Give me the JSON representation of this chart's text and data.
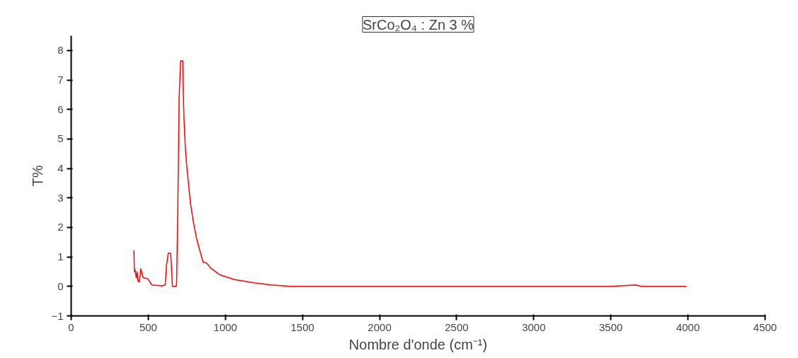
{
  "chart_data": {
    "type": "line",
    "title": "SrCo₂O₄ : Zn 3 %",
    "xlabel": "Nombre d'onde (cm⁻¹)",
    "ylabel": "T%",
    "xlim": [
      0,
      4500
    ],
    "xticks": [
      0,
      500,
      1000,
      1500,
      2000,
      2500,
      3000,
      3500,
      4000,
      4500
    ],
    "ylim": [
      -1,
      8.5
    ],
    "yticks": [
      -1,
      0,
      1,
      2,
      3,
      4,
      5,
      6,
      7,
      8
    ],
    "grid": false,
    "marker": "none",
    "line_style": "solid",
    "series": [
      {
        "color": "#ff0000",
        "x": [
          407,
          410,
          415,
          422,
          428,
          433,
          440,
          447,
          451,
          467,
          499,
          523,
          586,
          610,
          618,
          630,
          645,
          650,
          657,
          681,
          684,
          692,
          700,
          710,
          724,
          726,
          732,
          741,
          752,
          764,
          773,
          792,
          816,
          855,
          879,
          903,
          966,
          1061,
          1188,
          1299,
          1426,
          1600,
          2000,
          2500,
          3000,
          3500,
          3660,
          3700,
          3990
        ],
        "values": [
          1.22,
          0.5,
          0.55,
          0.3,
          0.5,
          0.2,
          0.15,
          0.35,
          0.6,
          0.3,
          0.25,
          0.05,
          0.02,
          0.05,
          0.71,
          1.13,
          1.13,
          0.7,
          0,
          0,
          0.15,
          2.73,
          6.36,
          7.65,
          7.65,
          6.8,
          5.63,
          4.66,
          3.94,
          3.33,
          2.85,
          2.2,
          1.56,
          0.83,
          0.79,
          0.63,
          0.39,
          0.23,
          0.12,
          0.05,
          0,
          0,
          0,
          0,
          0,
          0,
          0.05,
          0,
          0
        ]
      }
    ]
  }
}
